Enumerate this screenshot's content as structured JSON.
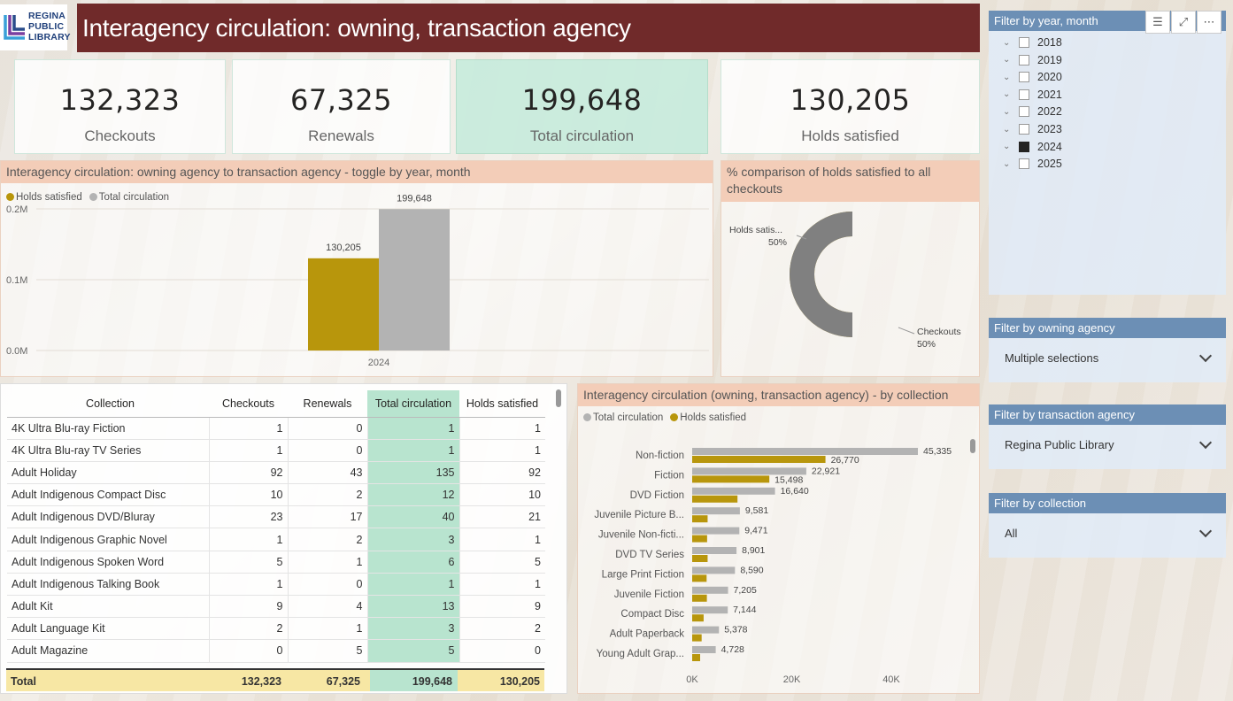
{
  "logo": {
    "line1": "REGINA",
    "line2": "PUBLIC",
    "line3": "LIBRARY"
  },
  "title": "Interagency circulation: owning, transaction agency",
  "kpis": [
    {
      "value": "132,323",
      "label": "Checkouts"
    },
    {
      "value": "67,325",
      "label": "Renewals"
    },
    {
      "value": "199,648",
      "label": "Total circulation"
    },
    {
      "value": "130,205",
      "label": "Holds satisfied"
    }
  ],
  "bar_panel": {
    "title": "Interagency circulation: owning agency to transaction agency - toggle by year, month",
    "legend": [
      "Holds satisfied",
      "Total circulation"
    ],
    "colors": {
      "holds": "#b8960c",
      "total": "#b3b3b3"
    }
  },
  "donut_panel": {
    "title": "% comparison of holds satisfied to all checkouts",
    "colors": {
      "holds": "#b8960c",
      "checkouts": "#808080"
    }
  },
  "hbar_panel": {
    "title": "Interagency circulation (owning, transaction agency) - by collection",
    "legend": [
      "Total circulation",
      "Holds satisfied"
    ],
    "colors": {
      "total": "#b3b3b3",
      "holds": "#b8960c"
    }
  },
  "chart_data": [
    {
      "type": "bar",
      "categories": [
        "2024"
      ],
      "series": [
        {
          "name": "Holds satisfied",
          "values": [
            130205
          ]
        },
        {
          "name": "Total circulation",
          "values": [
            199648
          ]
        }
      ],
      "data_labels": [
        "130,205",
        "199,648"
      ],
      "yticks": [
        "0.0M",
        "0.1M",
        "0.2M"
      ],
      "ylim": [
        0,
        230000
      ]
    },
    {
      "type": "pie",
      "donut": true,
      "slices": [
        {
          "name": "Holds satis...",
          "percent_label": "50%",
          "value": 50
        },
        {
          "name": "Checkouts",
          "percent_label": "50%",
          "value": 50
        }
      ]
    },
    {
      "type": "bar",
      "orientation": "horizontal",
      "categories": [
        "Non-fiction",
        "Fiction",
        "DVD Fiction",
        "Juvenile Picture B...",
        "Juvenile Non-ficti...",
        "DVD TV Series",
        "Large Print Fiction",
        "Juvenile Fiction",
        "Compact Disc",
        "Adult Paperback",
        "Young Adult Grap..."
      ],
      "series": [
        {
          "name": "Total circulation",
          "values": [
            45335,
            22921,
            16640,
            9581,
            9471,
            8901,
            8590,
            7205,
            7144,
            5378,
            4728
          ],
          "labels": [
            "45,335",
            "22,921",
            "16,640",
            "9,581",
            "9,471",
            "8,901",
            "8,590",
            "7,205",
            "7,144",
            "5,378",
            "4,728"
          ]
        },
        {
          "name": "Holds satisfied",
          "values": [
            26770,
            15498,
            9100,
            3100,
            3000,
            3100,
            2900,
            2950,
            2300,
            1900,
            1600
          ],
          "labels": [
            "26,770",
            "15,498",
            "",
            "",
            "",
            "",
            "",
            "",
            "",
            "",
            ""
          ]
        }
      ],
      "xticks": [
        "0K",
        "20K",
        "40K"
      ],
      "xlim": [
        0,
        48000
      ]
    }
  ],
  "table": {
    "headers": [
      "Collection",
      "Checkouts",
      "Renewals",
      "Total circulation",
      "Holds satisfied"
    ],
    "rows": [
      [
        "4K Ultra Blu-ray Fiction",
        "1",
        "0",
        "1",
        "1"
      ],
      [
        "4K Ultra Blu-ray TV Series",
        "1",
        "0",
        "1",
        "1"
      ],
      [
        "Adult Holiday",
        "92",
        "43",
        "135",
        "92"
      ],
      [
        "Adult Indigenous Compact Disc",
        "10",
        "2",
        "12",
        "10"
      ],
      [
        "Adult Indigenous DVD/Bluray",
        "23",
        "17",
        "40",
        "21"
      ],
      [
        "Adult Indigenous Graphic Novel",
        "1",
        "2",
        "3",
        "1"
      ],
      [
        "Adult Indigenous Spoken Word",
        "5",
        "1",
        "6",
        "5"
      ],
      [
        "Adult Indigenous Talking Book",
        "1",
        "0",
        "1",
        "1"
      ],
      [
        "Adult Kit",
        "9",
        "4",
        "13",
        "9"
      ],
      [
        "Adult Language Kit",
        "2",
        "1",
        "3",
        "2"
      ],
      [
        "Adult Magazine",
        "0",
        "5",
        "5",
        "0"
      ]
    ],
    "total": [
      "Total",
      "132,323",
      "67,325",
      "199,648",
      "130,205"
    ]
  },
  "slicers": {
    "year": {
      "title": "Filter by year, month",
      "years": [
        {
          "label": "2018",
          "checked": false
        },
        {
          "label": "2019",
          "checked": false
        },
        {
          "label": "2020",
          "checked": false
        },
        {
          "label": "2021",
          "checked": false
        },
        {
          "label": "2022",
          "checked": false
        },
        {
          "label": "2023",
          "checked": false
        },
        {
          "label": "2024",
          "checked": true
        },
        {
          "label": "2025",
          "checked": false
        }
      ]
    },
    "owning": {
      "title": "Filter by owning agency",
      "value": "Multiple selections"
    },
    "transaction": {
      "title": "Filter by transaction agency",
      "value": "Regina Public Library"
    },
    "collection": {
      "title": "Filter by collection",
      "value": "All"
    }
  }
}
